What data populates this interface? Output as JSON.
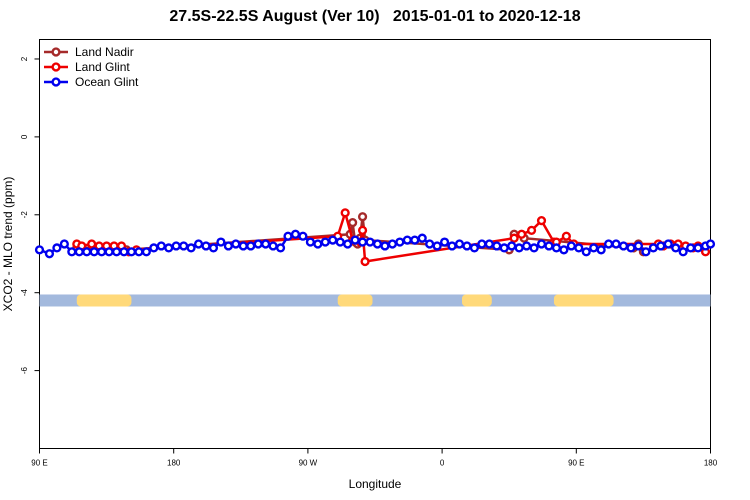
{
  "chart_data": {
    "type": "line",
    "title": "27.5S-22.5S August (Ver 10)   2015-01-01 to 2020-12-18",
    "xlabel": "Longitude",
    "ylabel": "XCO2 - MLO trend (ppm)",
    "xlim": [
      -90,
      180
    ],
    "ylim": [
      -8,
      2.5
    ],
    "x_ticks": [
      {
        "value": -90,
        "label": "90 E"
      },
      {
        "value": -36,
        "label": "180"
      },
      {
        "value": 18,
        "label": "90 W"
      },
      {
        "value": 72,
        "label": "0"
      },
      {
        "value": 126,
        "label": "90 E"
      },
      {
        "value": 180,
        "label": "180"
      }
    ],
    "y_ticks": [
      {
        "value": 2,
        "label": "2"
      },
      {
        "value": 0,
        "label": "0"
      },
      {
        "value": -2,
        "label": "-2"
      },
      {
        "value": -4,
        "label": "-4"
      },
      {
        "value": -6,
        "label": "-6"
      }
    ],
    "grid": false,
    "legend_position": "top-left",
    "series": [
      {
        "name": "Land Nadir",
        "color": "#a52a2a",
        "x": [
          -75,
          -61,
          -55,
          35,
          36,
          37,
          38,
          39,
          40,
          41,
          99,
          101,
          105,
          149,
          151,
          153
        ],
        "y": [
          -2.85,
          -2.85,
          -2.9,
          -2.5,
          -2.2,
          -2.7,
          -2.75,
          -2.6,
          -2.05,
          -2.65,
          -2.9,
          -2.5,
          -2.6,
          -2.85,
          -2.75,
          -2.95
        ]
      },
      {
        "name": "Land Glint",
        "color": "#ee0000",
        "x": [
          -75,
          -73,
          -69,
          -66,
          -63,
          -60,
          -57,
          -54,
          -51,
          30,
          33,
          36,
          39,
          40,
          41,
          101,
          104,
          108,
          112,
          117,
          118,
          122,
          125,
          159,
          161,
          164,
          167,
          170,
          173,
          175,
          178
        ],
        "y": [
          -2.75,
          -2.8,
          -2.75,
          -2.8,
          -2.8,
          -2.8,
          -2.8,
          -2.95,
          -2.9,
          -2.55,
          -1.95,
          -2.65,
          -2.7,
          -2.4,
          -3.2,
          -2.6,
          -2.5,
          -2.4,
          -2.15,
          -2.7,
          -2.7,
          -2.55,
          -2.75,
          -2.75,
          -2.8,
          -2.75,
          -2.75,
          -2.8,
          -2.85,
          -2.8,
          -2.95
        ]
      },
      {
        "name": "Ocean Glint",
        "color": "#0000ee",
        "x": [
          -90,
          -86,
          -83,
          -80,
          -77,
          -74,
          -71,
          -68,
          -65,
          -62,
          -59,
          -56,
          -53,
          -50,
          -47,
          -44,
          -41,
          -38,
          -35,
          -32,
          -29,
          -26,
          -23,
          -20,
          -17,
          -14,
          -11,
          -8,
          -5,
          -2,
          1,
          4,
          7,
          10,
          13,
          16,
          19,
          22,
          25,
          28,
          31,
          34,
          37,
          40,
          43,
          46,
          49,
          52,
          55,
          58,
          61,
          64,
          67,
          70,
          73,
          76,
          79,
          82,
          85,
          88,
          91,
          94,
          97,
          100,
          103,
          106,
          109,
          112,
          115,
          118,
          121,
          124,
          127,
          130,
          133,
          136,
          139,
          142,
          145,
          148,
          151,
          154,
          157,
          160,
          163,
          166,
          169,
          172,
          175,
          178,
          180
        ],
        "y": [
          -2.9,
          -3.0,
          -2.85,
          -2.75,
          -2.95,
          -2.95,
          -2.95,
          -2.95,
          -2.95,
          -2.95,
          -2.95,
          -2.95,
          -2.95,
          -2.95,
          -2.95,
          -2.85,
          -2.8,
          -2.85,
          -2.8,
          -2.8,
          -2.85,
          -2.75,
          -2.8,
          -2.85,
          -2.7,
          -2.8,
          -2.75,
          -2.8,
          -2.8,
          -2.75,
          -2.75,
          -2.8,
          -2.85,
          -2.55,
          -2.5,
          -2.55,
          -2.7,
          -2.75,
          -2.7,
          -2.65,
          -2.7,
          -2.75,
          -2.65,
          -2.7,
          -2.7,
          -2.75,
          -2.8,
          -2.75,
          -2.7,
          -2.65,
          -2.65,
          -2.6,
          -2.75,
          -2.8,
          -2.7,
          -2.8,
          -2.75,
          -2.8,
          -2.85,
          -2.75,
          -2.75,
          -2.8,
          -2.85,
          -2.8,
          -2.85,
          -2.8,
          -2.85,
          -2.75,
          -2.8,
          -2.85,
          -2.9,
          -2.8,
          -2.85,
          -2.95,
          -2.85,
          -2.9,
          -2.75,
          -2.75,
          -2.8,
          -2.85,
          -2.8,
          -2.95,
          -2.85,
          -2.8,
          -2.75,
          -2.85,
          -2.95,
          -2.85,
          -2.85,
          -2.8,
          -2.75
        ]
      }
    ],
    "land_mask": {
      "y": -4.2,
      "ocean_color": "#a3b9dd",
      "land_color": "#ffd97a",
      "land_ranges": [
        [
          -75,
          -53
        ],
        [
          30,
          44
        ],
        [
          80,
          92
        ],
        [
          117,
          141
        ]
      ]
    }
  }
}
